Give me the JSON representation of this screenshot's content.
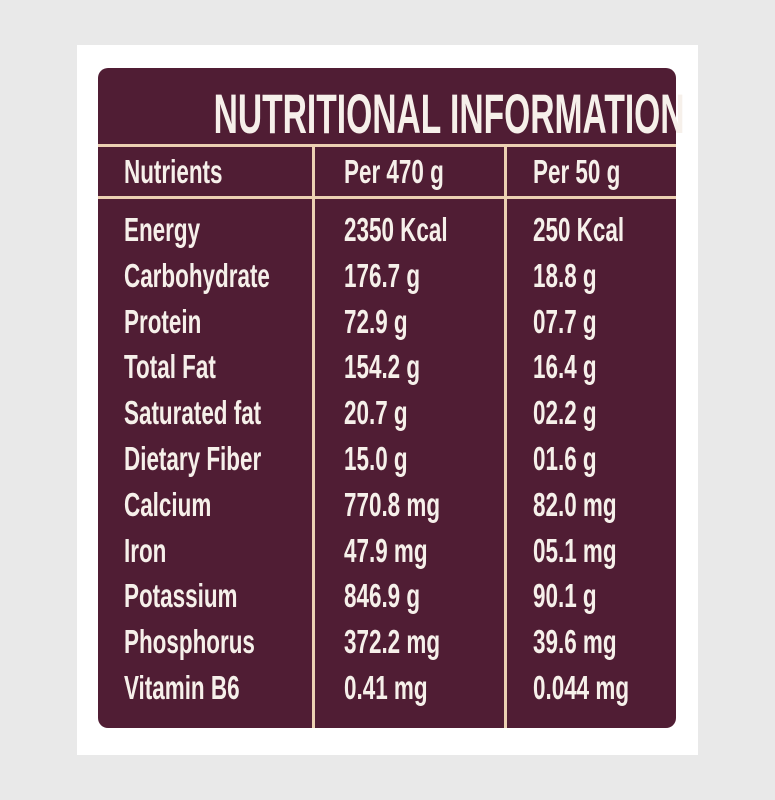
{
  "table": {
    "title": "NUTRITIONAL INFORMATION",
    "header": [
      "Nutrients",
      "Per 470 g",
      "Per 50 g"
    ],
    "rows": [
      [
        "Energy",
        "2350 Kcal",
        "250 Kcal"
      ],
      [
        "Carbohydrate",
        "176.7 g",
        "18.8 g"
      ],
      [
        "Protein",
        "72.9 g",
        "07.7 g"
      ],
      [
        "Total Fat",
        "154.2 g",
        "16.4 g"
      ],
      [
        "Saturated fat",
        "20.7 g",
        "02.2 g"
      ],
      [
        "Dietary Fiber",
        "15.0 g",
        "01.6 g"
      ],
      [
        "Calcium",
        "770.8 mg",
        "82.0 mg"
      ],
      [
        "Iron",
        "47.9 mg",
        "05.1 mg"
      ],
      [
        "Potassium",
        "846.9 g",
        "90.1 g"
      ],
      [
        "Phosphorus",
        "372.2 mg",
        "39.6 mg"
      ],
      [
        "Vitamin B6",
        "0.41 mg",
        "0.044 mg"
      ]
    ]
  }
}
